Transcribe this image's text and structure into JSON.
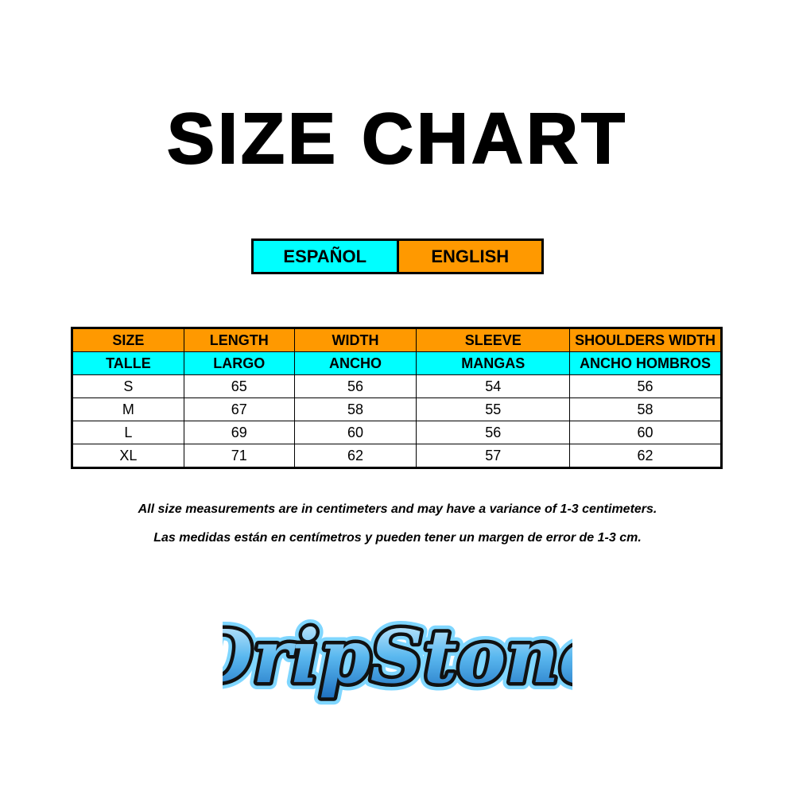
{
  "title": "SIZE CHART",
  "language_toggle": {
    "spanish": "ESPAÑOL",
    "english": "ENGLISH"
  },
  "colors": {
    "orange": "#ff9900",
    "cyan": "#00ffff"
  },
  "table": {
    "headers_en": [
      "SIZE",
      "LENGTH",
      "WIDTH",
      "SLEEVE",
      "SHOULDERS WIDTH"
    ],
    "headers_es": [
      "TALLE",
      "LARGO",
      "ANCHO",
      "MANGAS",
      "ANCHO HOMBROS"
    ],
    "rows": [
      [
        "S",
        "65",
        "56",
        "54",
        "56"
      ],
      [
        "M",
        "67",
        "58",
        "55",
        "58"
      ],
      [
        "L",
        "69",
        "60",
        "56",
        "60"
      ],
      [
        "XL",
        "71",
        "62",
        "57",
        "62"
      ]
    ]
  },
  "notes": {
    "english": "All size measurements are in centimeters and may have a variance of 1-3 centimeters.",
    "spanish": "Las medidas están en centímetros y pueden tener un margen de error de 1-3 cm."
  },
  "logo": {
    "text": "DripStone"
  }
}
